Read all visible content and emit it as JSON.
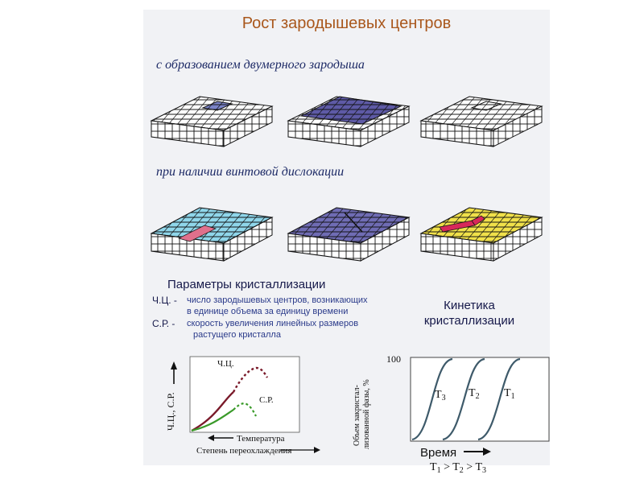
{
  "title": "Рост зародышевых центров",
  "section1_label": "с образованием двумерного зародыша",
  "section2_label": "при наличии винтовой дислокации",
  "colors": {
    "blue_nucleus": "#7a83c8",
    "blue_layer": "#5e5aa6",
    "cyan_layer": "#8fd6ea",
    "pink_step": "#e0708c",
    "yellow_layer": "#f0e04a",
    "red_step": "#d8285a",
    "curve_cc": "#7a1a2a",
    "curve_sr": "#3a9a2a",
    "kinetics_curve": "#3e5a6a"
  },
  "params": {
    "title": "Параметры кристаллизации",
    "cc_abbr": "Ч.Ц. -",
    "cc_line1": "число зародышевых центров, возникающих",
    "cc_line2": "в единице объема за единицу времени",
    "sr_abbr": "С.Р. -",
    "sr_line1": "скорость увеличения линейных размеров",
    "sr_line2": "растущего кристалла"
  },
  "kinetics": {
    "title_line1": "Кинетика",
    "title_line2": "кристаллизации",
    "y_label_line1": "Объем закристал-",
    "y_label_line2": "лизованной фазы, %",
    "y_max_label": "100",
    "x_label": "Время",
    "curves": [
      {
        "label": "T",
        "sub": "3"
      },
      {
        "label": "T",
        "sub": "2"
      },
      {
        "label": "T",
        "sub": "1"
      }
    ],
    "relation": {
      "t1": "T",
      "s1": "1",
      "op1": " > ",
      "t2": "T",
      "s2": "2",
      "op2": " > ",
      "t3": "T",
      "s3": "3"
    }
  },
  "temp_chart": {
    "y_label": "Ч.Ц., С.Р.",
    "cc_label": "Ч.Ц.",
    "sr_label": "С.Р.",
    "x_label1": "Температура",
    "x_label2": "Степень переохлаждения"
  }
}
